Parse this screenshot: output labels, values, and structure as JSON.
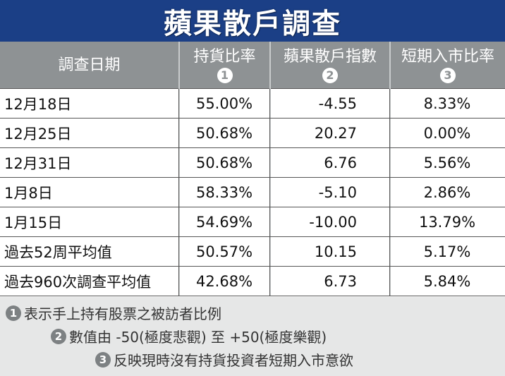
{
  "title": "蘋果散戶調查",
  "columns": [
    {
      "label": "調查日期",
      "num": ""
    },
    {
      "label": "持貨比率",
      "num": "1"
    },
    {
      "label": "蘋果散戶指數",
      "num": "2"
    },
    {
      "label": "短期入市比率",
      "num": "3"
    }
  ],
  "rows": [
    {
      "date": "12月18日",
      "hold": "55.00%",
      "index": "-4.55",
      "short": "8.33%"
    },
    {
      "date": "12月25日",
      "hold": "50.68%",
      "index": "20.27",
      "short": "0.00%"
    },
    {
      "date": "12月31日",
      "hold": "50.68%",
      "index": "6.76",
      "short": "5.56%"
    },
    {
      "date": "1月8日",
      "hold": "58.33%",
      "index": "-5.10",
      "short": "2.86%"
    },
    {
      "date": "1月15日",
      "hold": "54.69%",
      "index": "-10.00",
      "short": "13.79%"
    },
    {
      "date": "過去52周平均值",
      "hold": "50.57%",
      "index": "10.15",
      "short": "5.17%"
    },
    {
      "date": "過去960次調查平均值",
      "hold": "42.68%",
      "index": "6.73",
      "short": "5.84%"
    }
  ],
  "notes": [
    {
      "num": "1",
      "text": "表示手上持有股票之被訪者比例"
    },
    {
      "num": "2",
      "text": "數值由 -50(極度悲觀) 至 +50(極度樂觀)"
    },
    {
      "num": "3",
      "text": "反映現時沒有持貨投資者短期入市意欲"
    }
  ],
  "colors": {
    "title_bg": "#1b3f86",
    "header_bg": "#8e9294",
    "notes_bg": "#e6e7e7"
  }
}
